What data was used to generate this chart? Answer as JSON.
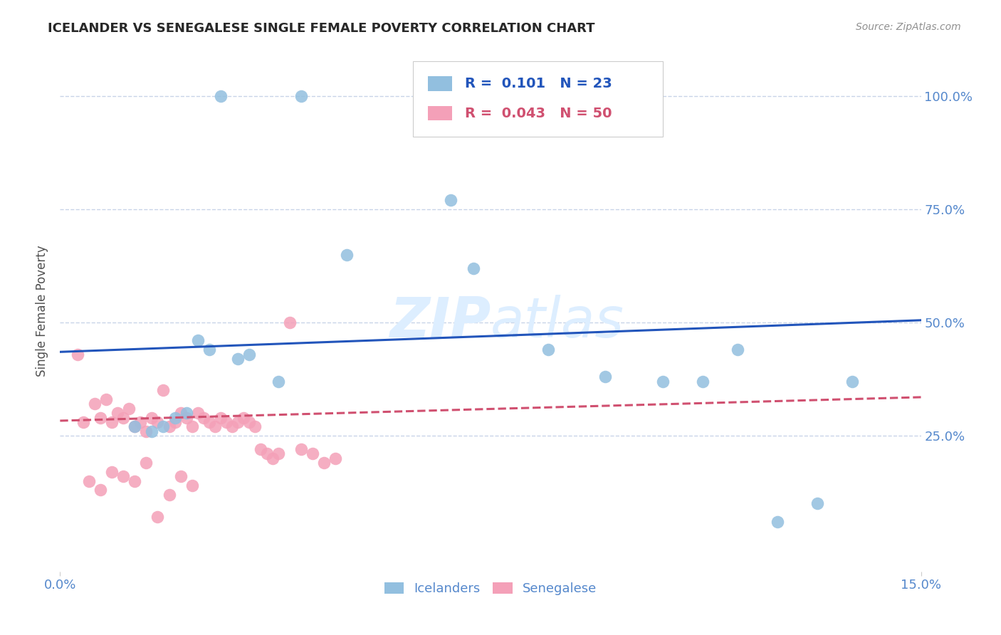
{
  "title": "ICELANDER VS SENEGALESE SINGLE FEMALE POVERTY CORRELATION CHART",
  "source": "Source: ZipAtlas.com",
  "ylabel": "Single Female Poverty",
  "ytick_labels": [
    "100.0%",
    "75.0%",
    "50.0%",
    "25.0%"
  ],
  "ytick_values": [
    1.0,
    0.75,
    0.5,
    0.25
  ],
  "xlim": [
    0.0,
    0.15
  ],
  "ylim": [
    -0.05,
    1.1
  ],
  "legend_blue_r": "0.101",
  "legend_blue_n": "23",
  "legend_pink_r": "0.043",
  "legend_pink_n": "50",
  "blue_scatter_x": [
    0.028,
    0.042,
    0.018,
    0.022,
    0.024,
    0.026,
    0.031,
    0.033,
    0.038,
    0.05,
    0.068,
    0.072,
    0.085,
    0.095,
    0.105,
    0.112,
    0.118,
    0.125,
    0.132,
    0.138,
    0.013,
    0.016,
    0.02
  ],
  "blue_scatter_y": [
    1.0,
    1.0,
    0.27,
    0.3,
    0.46,
    0.44,
    0.42,
    0.43,
    0.37,
    0.65,
    0.77,
    0.62,
    0.44,
    0.38,
    0.37,
    0.37,
    0.44,
    0.06,
    0.1,
    0.37,
    0.27,
    0.26,
    0.29
  ],
  "pink_scatter_x": [
    0.004,
    0.006,
    0.007,
    0.008,
    0.009,
    0.01,
    0.011,
    0.012,
    0.013,
    0.014,
    0.015,
    0.016,
    0.017,
    0.018,
    0.019,
    0.02,
    0.021,
    0.022,
    0.023,
    0.024,
    0.025,
    0.026,
    0.027,
    0.028,
    0.029,
    0.03,
    0.031,
    0.032,
    0.033,
    0.034,
    0.035,
    0.036,
    0.037,
    0.038,
    0.04,
    0.042,
    0.044,
    0.046,
    0.048,
    0.005,
    0.007,
    0.009,
    0.011,
    0.013,
    0.015,
    0.017,
    0.019,
    0.021,
    0.023,
    0.003
  ],
  "pink_scatter_y": [
    0.28,
    0.32,
    0.29,
    0.33,
    0.28,
    0.3,
    0.29,
    0.31,
    0.27,
    0.28,
    0.26,
    0.29,
    0.28,
    0.35,
    0.27,
    0.28,
    0.3,
    0.29,
    0.27,
    0.3,
    0.29,
    0.28,
    0.27,
    0.29,
    0.28,
    0.27,
    0.28,
    0.29,
    0.28,
    0.27,
    0.22,
    0.21,
    0.2,
    0.21,
    0.5,
    0.22,
    0.21,
    0.19,
    0.2,
    0.15,
    0.13,
    0.17,
    0.16,
    0.15,
    0.19,
    0.07,
    0.12,
    0.16,
    0.14,
    0.43
  ],
  "blue_color": "#92bfdf",
  "pink_color": "#f4a0b8",
  "blue_line_color": "#2255bb",
  "pink_line_color": "#d05070",
  "grid_color": "#c8d4e8",
  "background_color": "#ffffff",
  "title_color": "#282828",
  "axis_label_color": "#5588cc",
  "watermark_color": "#ddeeff"
}
